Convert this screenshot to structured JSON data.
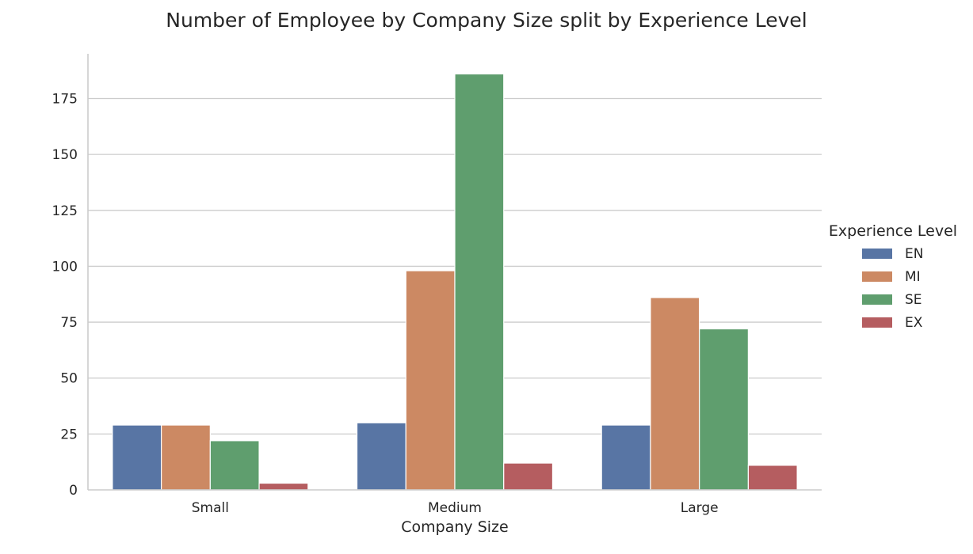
{
  "chart_data": {
    "type": "bar",
    "title": "Number of Employee by Company Size split by Experience Level",
    "xlabel": "Company Size",
    "ylabel": "",
    "categories": [
      "Small",
      "Medium",
      "Large"
    ],
    "series": [
      {
        "name": "EN",
        "color": "#5875a4",
        "values": [
          29,
          30,
          29
        ]
      },
      {
        "name": "MI",
        "color": "#cc8963",
        "values": [
          29,
          98,
          86
        ]
      },
      {
        "name": "SE",
        "color": "#5f9e6e",
        "values": [
          22,
          186,
          72
        ]
      },
      {
        "name": "EX",
        "color": "#b55d60",
        "values": [
          3,
          12,
          11
        ]
      }
    ],
    "ylim": [
      0,
      195
    ],
    "yticks": [
      0,
      25,
      50,
      75,
      100,
      125,
      150,
      175
    ],
    "grid": true,
    "legend": {
      "title": "Experience Level",
      "placement": "right"
    }
  }
}
